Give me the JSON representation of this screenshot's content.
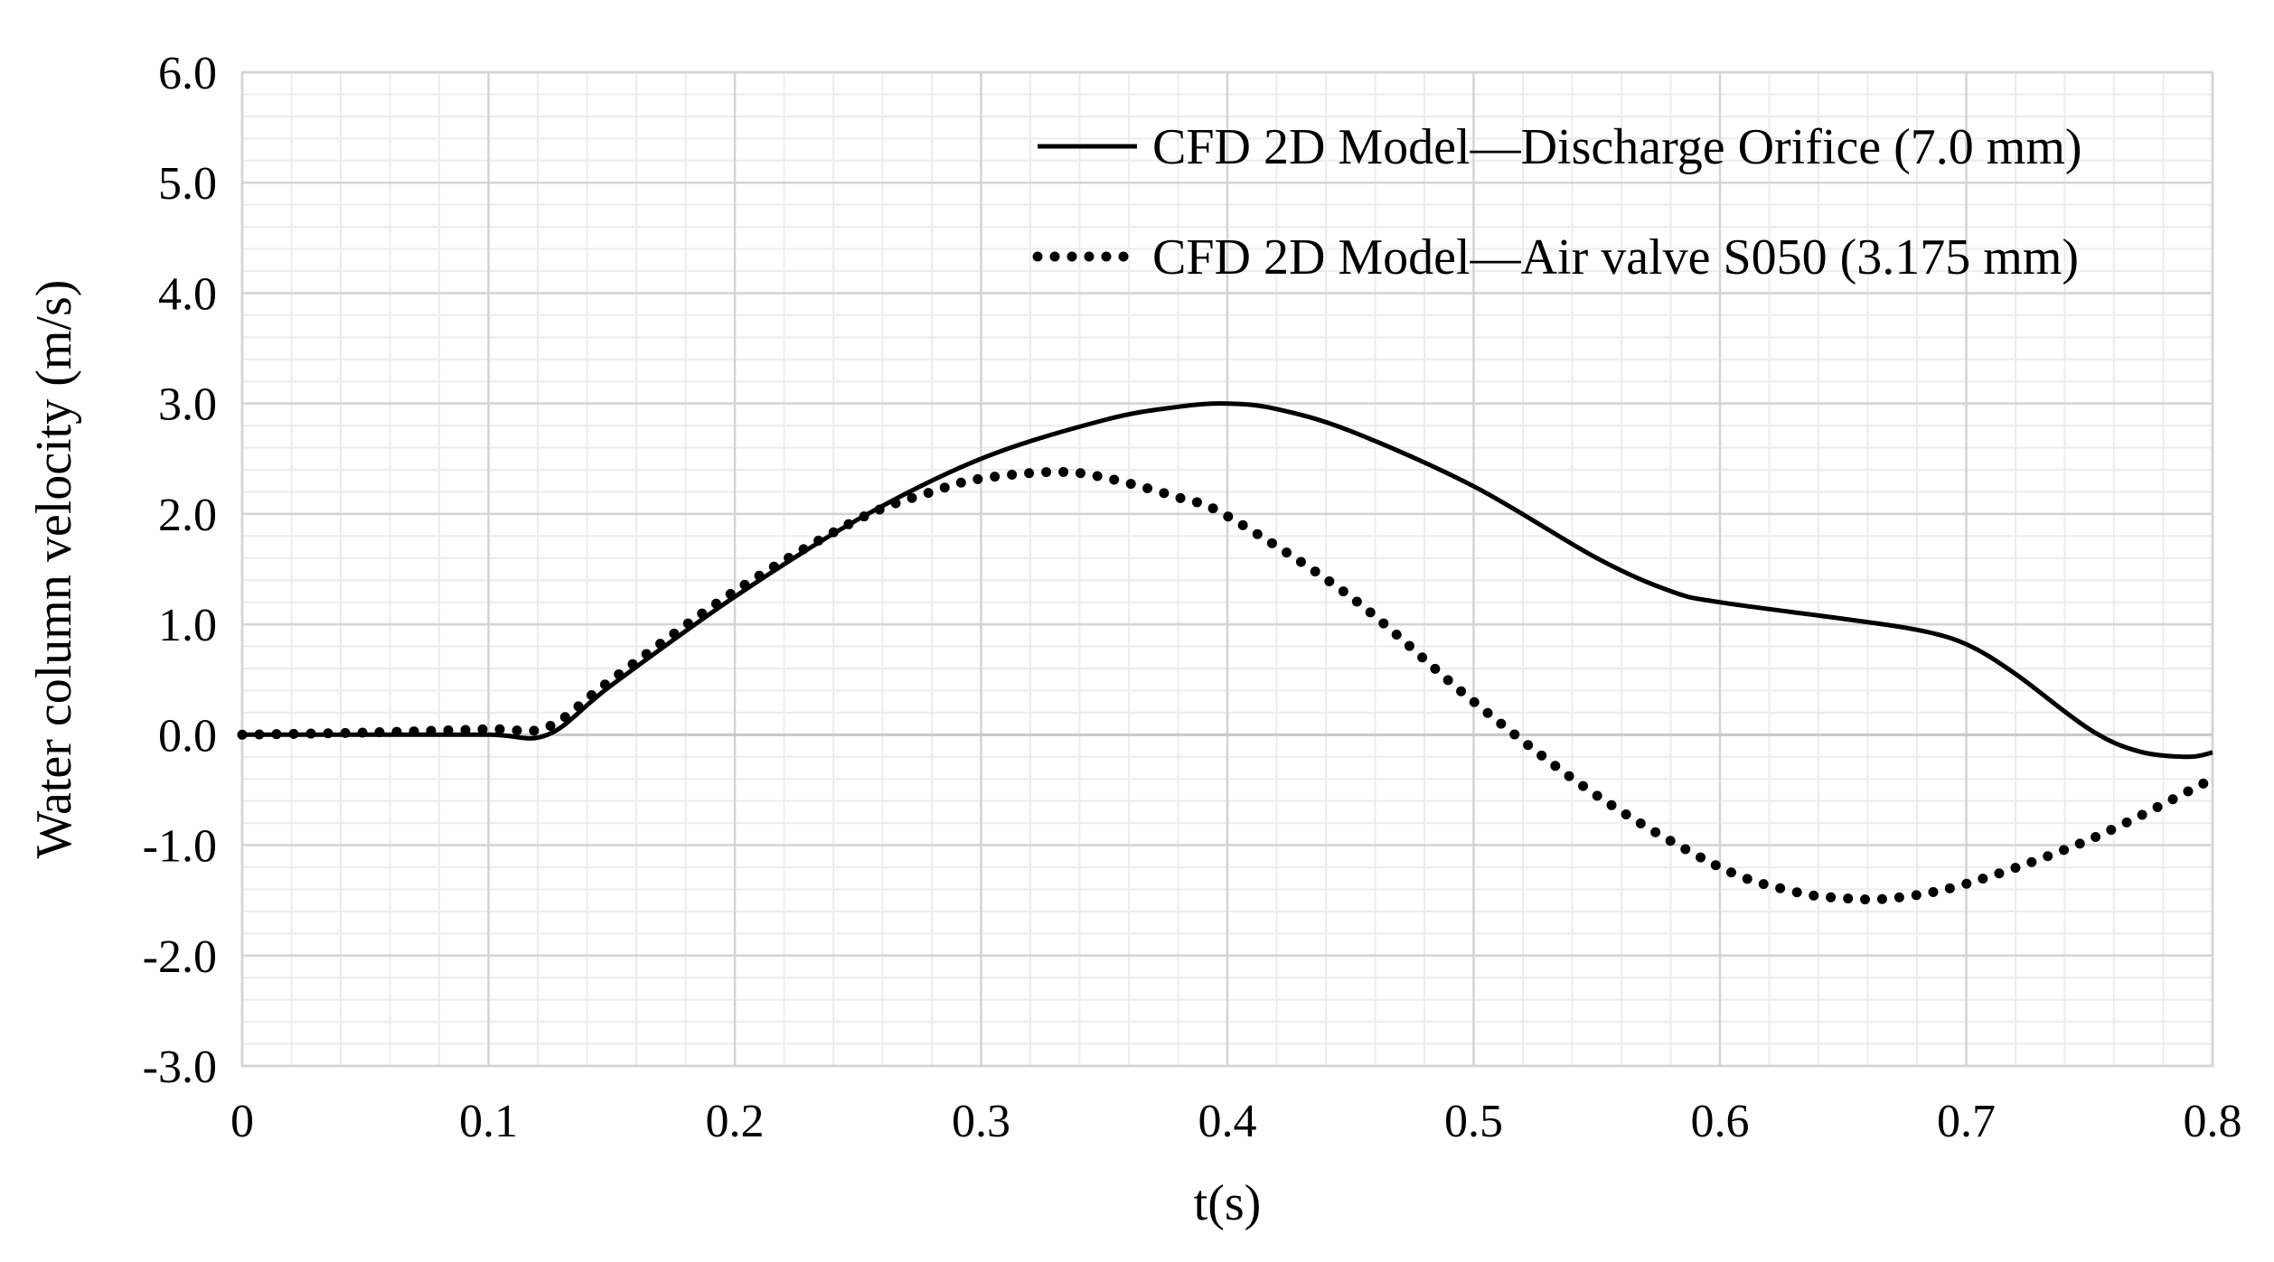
{
  "chart_data": {
    "type": "line",
    "title": "",
    "xlabel": "t(s)",
    "ylabel": "Water column velocity (m/s)",
    "xlim": [
      0,
      0.8
    ],
    "ylim": [
      -3.0,
      6.0
    ],
    "x_ticks": [
      0,
      0.1,
      0.2,
      0.3,
      0.4,
      0.5,
      0.6,
      0.7,
      0.8
    ],
    "x_tick_labels": [
      "0",
      "0.1",
      "0.2",
      "0.3",
      "0.4",
      "0.5",
      "0.6",
      "0.7",
      "0.8"
    ],
    "y_ticks": [
      -3,
      -2,
      -1,
      0,
      1,
      2,
      3,
      4,
      5,
      6
    ],
    "y_tick_labels": [
      "-3.0",
      "-2.0",
      "-1.0",
      "0.0",
      "1.0",
      "2.0",
      "3.0",
      "4.0",
      "5.0",
      "6.0"
    ],
    "grid": true,
    "legend_position": "top-right",
    "series": [
      {
        "name": "CFD 2D Model—Discharge Orifice (7.0 mm)",
        "style": "solid",
        "color": "#000000",
        "x": [
          0,
          0.05,
          0.1,
          0.124,
          0.15,
          0.2,
          0.25,
          0.3,
          0.35,
          0.38,
          0.4,
          0.42,
          0.45,
          0.5,
          0.55,
          0.58,
          0.6,
          0.65,
          0.68,
          0.7,
          0.72,
          0.75,
          0.77,
          0.79,
          0.8
        ],
        "y": [
          0,
          0,
          0,
          0,
          0.45,
          1.25,
          1.95,
          2.5,
          2.85,
          2.97,
          3.0,
          2.95,
          2.75,
          2.25,
          1.6,
          1.3,
          1.2,
          1.05,
          0.95,
          0.82,
          0.55,
          0.05,
          -0.15,
          -0.2,
          -0.16
        ]
      },
      {
        "name": "CFD 2D Model—Air valve S050 (3.175 mm)",
        "style": "dotted",
        "color": "#000000",
        "x": [
          0,
          0.05,
          0.1,
          0.124,
          0.15,
          0.2,
          0.25,
          0.28,
          0.3,
          0.33,
          0.35,
          0.38,
          0.4,
          0.45,
          0.5,
          0.55,
          0.6,
          0.63,
          0.65,
          0.67,
          0.7,
          0.75,
          0.8
        ],
        "y": [
          0,
          0.02,
          0.05,
          0.07,
          0.5,
          1.3,
          1.95,
          2.2,
          2.32,
          2.38,
          2.33,
          2.15,
          1.98,
          1.25,
          0.3,
          -0.55,
          -1.2,
          -1.42,
          -1.48,
          -1.48,
          -1.35,
          -0.95,
          -0.4
        ]
      }
    ]
  }
}
